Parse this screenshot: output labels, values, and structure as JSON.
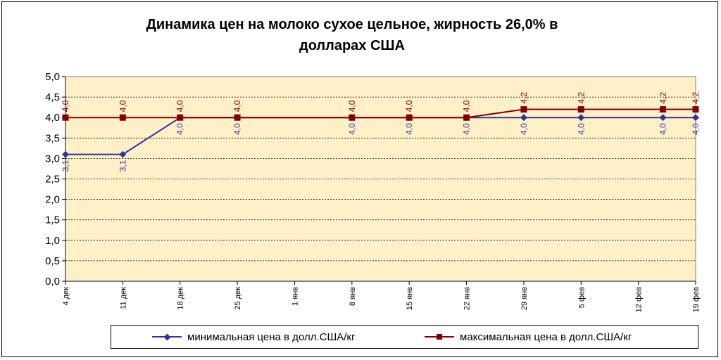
{
  "chart_data": {
    "type": "line",
    "title_lines": [
      "Динамика цен на молоко сухое цельное, жирность 26,0%  в",
      "долларах  США"
    ],
    "ylim": [
      0,
      5
    ],
    "y_ticks": [
      "0,0",
      "0,5",
      "1,0",
      "1,5",
      "2,0",
      "2,5",
      "3,0",
      "3,5",
      "4,0",
      "4,5",
      "5,0"
    ],
    "x_ticks": [
      "4 дек",
      "11 дек",
      "18 дек",
      "25 дек",
      "1 янв",
      "8 янв",
      "15 янв",
      "22 янв",
      "29 янв",
      "5 фев",
      "12 фев",
      "19 фев"
    ],
    "x_tick_days": [
      0,
      7,
      14,
      21,
      28,
      35,
      42,
      49,
      56,
      63,
      70,
      77
    ],
    "grid": true,
    "legend_position": "bottom",
    "series": [
      {
        "name": "минимальная цена в долл.США/кг",
        "color": "#333399",
        "marker": "diamond",
        "x_days": [
          0,
          7,
          14,
          21,
          35,
          42,
          49,
          56,
          63,
          73,
          77
        ],
        "values": [
          3.1,
          3.1,
          4.0,
          4.0,
          4.0,
          4.0,
          4.0,
          4.0,
          4.0,
          4.0,
          4.0
        ],
        "labels": [
          "3,1",
          "3,1",
          "4,0",
          "4,0",
          "4,0",
          "4,0",
          "4,0",
          "4,0",
          "4,0",
          "4,0",
          "4,0"
        ],
        "label_side": "below"
      },
      {
        "name": "максимальная цена в долл.США/кг",
        "color": "#800000",
        "marker": "square",
        "x_days": [
          0,
          7,
          14,
          21,
          35,
          42,
          49,
          56,
          63,
          73,
          77
        ],
        "values": [
          4.0,
          4.0,
          4.0,
          4.0,
          4.0,
          4.0,
          4.0,
          4.2,
          4.2,
          4.2,
          4.2
        ],
        "labels": [
          "4,0",
          "4,0",
          "4,0",
          "4,0",
          "4,0",
          "4,0",
          "4,0",
          "4,2",
          "4,2",
          "4,2",
          "4,2"
        ],
        "label_side": "above"
      }
    ]
  },
  "legend": {
    "min_label": "минимальная цена в долл.США/кг",
    "max_label": "максимальная цена в долл.США/кг"
  }
}
